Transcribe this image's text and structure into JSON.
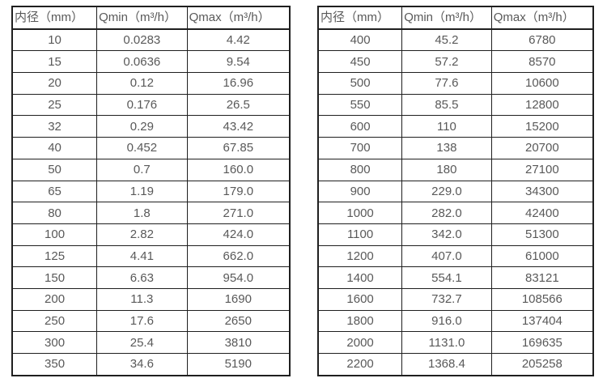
{
  "page": {
    "background_color": "#ffffff",
    "text_color": "#595959",
    "border_color": "#1f1f1f"
  },
  "tables": [
    {
      "name": "flow-spec-table-small-diameters",
      "headers": [
        "内径（mm）",
        "Qmin（m³/h）",
        "Qmax（m³/h）"
      ],
      "rows": [
        [
          "10",
          "0.0283",
          "4.42"
        ],
        [
          "15",
          "0.0636",
          "9.54"
        ],
        [
          "20",
          "0.12",
          "16.96"
        ],
        [
          "25",
          "0.176",
          "26.5"
        ],
        [
          "32",
          "0.29",
          "43.42"
        ],
        [
          "40",
          "0.452",
          "67.85"
        ],
        [
          "50",
          "0.7",
          "160.0"
        ],
        [
          "65",
          "1.19",
          "179.0"
        ],
        [
          "80",
          "1.8",
          "271.0"
        ],
        [
          "100",
          "2.82",
          "424.0"
        ],
        [
          "125",
          "4.41",
          "662.0"
        ],
        [
          "150",
          "6.63",
          "954.0"
        ],
        [
          "200",
          "11.3",
          "1690"
        ],
        [
          "250",
          "17.6",
          "2650"
        ],
        [
          "300",
          "25.4",
          "3810"
        ],
        [
          "350",
          "34.6",
          "5190"
        ]
      ]
    },
    {
      "name": "flow-spec-table-large-diameters",
      "headers": [
        "内径（mm）",
        "Qmin（m³/h）",
        "Qmax（m³/h）"
      ],
      "rows": [
        [
          "400",
          "45.2",
          "6780"
        ],
        [
          "450",
          "57.2",
          "8570"
        ],
        [
          "500",
          "77.6",
          "10600"
        ],
        [
          "550",
          "85.5",
          "12800"
        ],
        [
          "600",
          "110",
          "15200"
        ],
        [
          "700",
          "138",
          "20700"
        ],
        [
          "800",
          "180",
          "27100"
        ],
        [
          "900",
          "229.0",
          "34300"
        ],
        [
          "1000",
          "282.0",
          "42400"
        ],
        [
          "1100",
          "342.0",
          "51300"
        ],
        [
          "1200",
          "407.0",
          "61000"
        ],
        [
          "1400",
          "554.1",
          "83121"
        ],
        [
          "1600",
          "732.7",
          "108566"
        ],
        [
          "1800",
          "916.0",
          "137404"
        ],
        [
          "2000",
          "1131.0",
          "169635"
        ],
        [
          "2200",
          "1368.4",
          "205258"
        ]
      ]
    }
  ]
}
